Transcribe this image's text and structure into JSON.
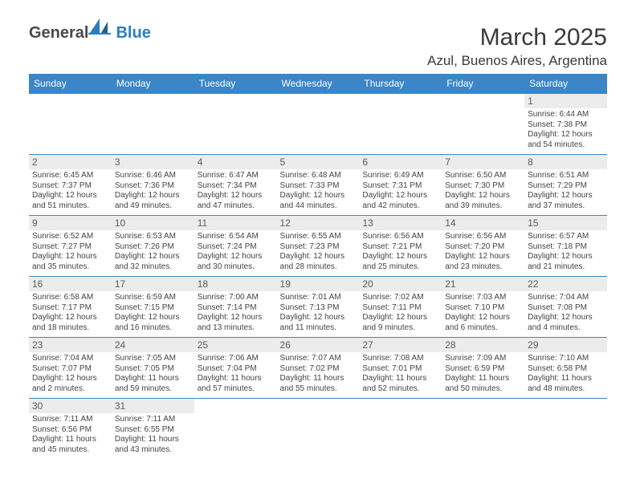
{
  "logo": {
    "general": "General",
    "blue": "Blue"
  },
  "title": "March 2025",
  "location": "Azul, Buenos Aires, Argentina",
  "colors": {
    "header_bg": "#3a86c8",
    "header_fg": "#ffffff",
    "rule": "#3a86c8",
    "daynum_bg": "#ececec"
  },
  "day_headers": [
    "Sunday",
    "Monday",
    "Tuesday",
    "Wednesday",
    "Thursday",
    "Friday",
    "Saturday"
  ],
  "weeks": [
    [
      null,
      null,
      null,
      null,
      null,
      null,
      {
        "n": "1",
        "sr": "Sunrise: 6:44 AM",
        "ss": "Sunset: 7:38 PM",
        "dl": "Daylight: 12 hours and 54 minutes."
      }
    ],
    [
      {
        "n": "2",
        "sr": "Sunrise: 6:45 AM",
        "ss": "Sunset: 7:37 PM",
        "dl": "Daylight: 12 hours and 51 minutes."
      },
      {
        "n": "3",
        "sr": "Sunrise: 6:46 AM",
        "ss": "Sunset: 7:36 PM",
        "dl": "Daylight: 12 hours and 49 minutes."
      },
      {
        "n": "4",
        "sr": "Sunrise: 6:47 AM",
        "ss": "Sunset: 7:34 PM",
        "dl": "Daylight: 12 hours and 47 minutes."
      },
      {
        "n": "5",
        "sr": "Sunrise: 6:48 AM",
        "ss": "Sunset: 7:33 PM",
        "dl": "Daylight: 12 hours and 44 minutes."
      },
      {
        "n": "6",
        "sr": "Sunrise: 6:49 AM",
        "ss": "Sunset: 7:31 PM",
        "dl": "Daylight: 12 hours and 42 minutes."
      },
      {
        "n": "7",
        "sr": "Sunrise: 6:50 AM",
        "ss": "Sunset: 7:30 PM",
        "dl": "Daylight: 12 hours and 39 minutes."
      },
      {
        "n": "8",
        "sr": "Sunrise: 6:51 AM",
        "ss": "Sunset: 7:29 PM",
        "dl": "Daylight: 12 hours and 37 minutes."
      }
    ],
    [
      {
        "n": "9",
        "sr": "Sunrise: 6:52 AM",
        "ss": "Sunset: 7:27 PM",
        "dl": "Daylight: 12 hours and 35 minutes."
      },
      {
        "n": "10",
        "sr": "Sunrise: 6:53 AM",
        "ss": "Sunset: 7:26 PM",
        "dl": "Daylight: 12 hours and 32 minutes."
      },
      {
        "n": "11",
        "sr": "Sunrise: 6:54 AM",
        "ss": "Sunset: 7:24 PM",
        "dl": "Daylight: 12 hours and 30 minutes."
      },
      {
        "n": "12",
        "sr": "Sunrise: 6:55 AM",
        "ss": "Sunset: 7:23 PM",
        "dl": "Daylight: 12 hours and 28 minutes."
      },
      {
        "n": "13",
        "sr": "Sunrise: 6:56 AM",
        "ss": "Sunset: 7:21 PM",
        "dl": "Daylight: 12 hours and 25 minutes."
      },
      {
        "n": "14",
        "sr": "Sunrise: 6:56 AM",
        "ss": "Sunset: 7:20 PM",
        "dl": "Daylight: 12 hours and 23 minutes."
      },
      {
        "n": "15",
        "sr": "Sunrise: 6:57 AM",
        "ss": "Sunset: 7:18 PM",
        "dl": "Daylight: 12 hours and 21 minutes."
      }
    ],
    [
      {
        "n": "16",
        "sr": "Sunrise: 6:58 AM",
        "ss": "Sunset: 7:17 PM",
        "dl": "Daylight: 12 hours and 18 minutes."
      },
      {
        "n": "17",
        "sr": "Sunrise: 6:59 AM",
        "ss": "Sunset: 7:15 PM",
        "dl": "Daylight: 12 hours and 16 minutes."
      },
      {
        "n": "18",
        "sr": "Sunrise: 7:00 AM",
        "ss": "Sunset: 7:14 PM",
        "dl": "Daylight: 12 hours and 13 minutes."
      },
      {
        "n": "19",
        "sr": "Sunrise: 7:01 AM",
        "ss": "Sunset: 7:13 PM",
        "dl": "Daylight: 12 hours and 11 minutes."
      },
      {
        "n": "20",
        "sr": "Sunrise: 7:02 AM",
        "ss": "Sunset: 7:11 PM",
        "dl": "Daylight: 12 hours and 9 minutes."
      },
      {
        "n": "21",
        "sr": "Sunrise: 7:03 AM",
        "ss": "Sunset: 7:10 PM",
        "dl": "Daylight: 12 hours and 6 minutes."
      },
      {
        "n": "22",
        "sr": "Sunrise: 7:04 AM",
        "ss": "Sunset: 7:08 PM",
        "dl": "Daylight: 12 hours and 4 minutes."
      }
    ],
    [
      {
        "n": "23",
        "sr": "Sunrise: 7:04 AM",
        "ss": "Sunset: 7:07 PM",
        "dl": "Daylight: 12 hours and 2 minutes."
      },
      {
        "n": "24",
        "sr": "Sunrise: 7:05 AM",
        "ss": "Sunset: 7:05 PM",
        "dl": "Daylight: 11 hours and 59 minutes."
      },
      {
        "n": "25",
        "sr": "Sunrise: 7:06 AM",
        "ss": "Sunset: 7:04 PM",
        "dl": "Daylight: 11 hours and 57 minutes."
      },
      {
        "n": "26",
        "sr": "Sunrise: 7:07 AM",
        "ss": "Sunset: 7:02 PM",
        "dl": "Daylight: 11 hours and 55 minutes."
      },
      {
        "n": "27",
        "sr": "Sunrise: 7:08 AM",
        "ss": "Sunset: 7:01 PM",
        "dl": "Daylight: 11 hours and 52 minutes."
      },
      {
        "n": "28",
        "sr": "Sunrise: 7:09 AM",
        "ss": "Sunset: 6:59 PM",
        "dl": "Daylight: 11 hours and 50 minutes."
      },
      {
        "n": "29",
        "sr": "Sunrise: 7:10 AM",
        "ss": "Sunset: 6:58 PM",
        "dl": "Daylight: 11 hours and 48 minutes."
      }
    ],
    [
      {
        "n": "30",
        "sr": "Sunrise: 7:11 AM",
        "ss": "Sunset: 6:56 PM",
        "dl": "Daylight: 11 hours and 45 minutes."
      },
      {
        "n": "31",
        "sr": "Sunrise: 7:11 AM",
        "ss": "Sunset: 6:55 PM",
        "dl": "Daylight: 11 hours and 43 minutes."
      },
      null,
      null,
      null,
      null,
      null
    ]
  ]
}
